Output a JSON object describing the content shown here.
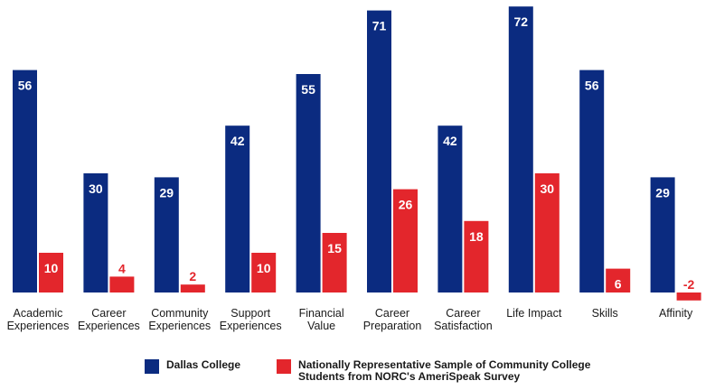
{
  "chart_data": {
    "type": "bar",
    "categories": [
      [
        "Academic",
        "Experiences"
      ],
      [
        "Career",
        "Experiences"
      ],
      [
        "Community",
        "Experiences"
      ],
      [
        "Support",
        "Experiences"
      ],
      [
        "Financial",
        "Value"
      ],
      [
        "Career",
        "Preparation"
      ],
      [
        "Career",
        "Satisfaction"
      ],
      [
        "Life Impact"
      ],
      [
        "Skills"
      ],
      [
        "Affinity"
      ]
    ],
    "series": [
      {
        "name": "Dallas College",
        "color": "#0b2b80",
        "values": [
          56,
          30,
          29,
          42,
          55,
          71,
          42,
          72,
          56,
          29
        ]
      },
      {
        "name": "Nationally Representative Sample of Community College Students from NORC's AmeriSpeak Survey",
        "color": "#e3262c",
        "values": [
          10,
          4,
          2,
          10,
          15,
          26,
          18,
          30,
          6,
          -2
        ]
      }
    ],
    "ylim": [
      -2,
      72
    ],
    "title": "",
    "xlabel": "",
    "ylabel": ""
  }
}
